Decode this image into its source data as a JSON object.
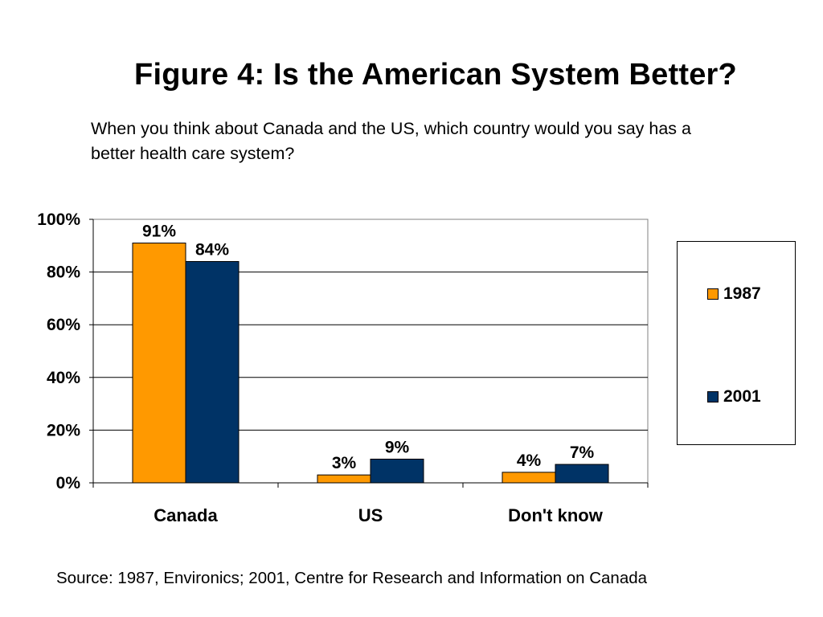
{
  "page": {
    "title": "Figure 4: Is the American System Better?",
    "subtitle": "When you think about Canada and the US, which country would you say has a better health care system?",
    "source": "Source: 1987, Environics; 2001, Centre for Research and Information on Canada"
  },
  "chart_data": {
    "type": "bar",
    "title": "Figure 4: Is the American System Better?",
    "subtitle": "When you think about Canada and the US, which country would you say has a better health care system?",
    "categories": [
      "Canada",
      "US",
      "Don't know"
    ],
    "series": [
      {
        "name": "1987",
        "values": [
          91,
          3,
          4
        ],
        "labels": [
          "91%",
          "3%",
          "4%"
        ],
        "color": "#FF9900"
      },
      {
        "name": "2001",
        "values": [
          84,
          9,
          7
        ],
        "labels": [
          "84%",
          "9%",
          "7%"
        ],
        "color": "#003366"
      }
    ],
    "yticks": [
      "0%",
      "20%",
      "40%",
      "60%",
      "80%",
      "100%"
    ],
    "ylim": [
      0,
      100
    ],
    "ylabel": "",
    "xlabel": "",
    "grid": true,
    "legend_position": "right",
    "source": "Source: 1987, Environics; 2001, Centre for Research and Information on Canada"
  }
}
